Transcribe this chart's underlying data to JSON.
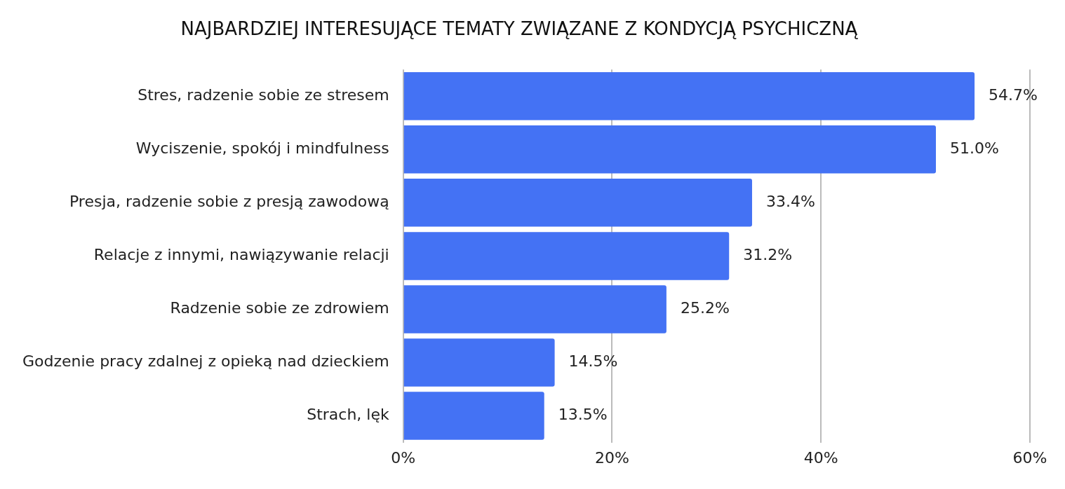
{
  "chart_data": {
    "type": "bar",
    "orientation": "horizontal",
    "title": "NAJBARDZIEJ INTERESUJĄCE TEMATY ZWIĄZANE Z KONDYCJĄ PSYCHICZNĄ",
    "categories": [
      "Stres, radzenie sobie ze stresem",
      "Wyciszenie, spokój i mindfulness",
      "Presja, radzenie sobie z presją zawodową",
      "Relacje z innymi, nawiązywanie relacji",
      "Radzenie sobie ze zdrowiem",
      "Godzenie pracy zdalnej z opieką nad dzieckiem",
      "Strach, lęk"
    ],
    "values": [
      54.7,
      51.0,
      33.4,
      31.2,
      25.2,
      14.5,
      13.5
    ],
    "value_labels": [
      "54.7%",
      "51.0%",
      "33.4%",
      "31.2%",
      "25.2%",
      "14.5%",
      "13.5%"
    ],
    "color": "#4472f4",
    "xlim": [
      0,
      60
    ],
    "xticks": [
      {
        "value": 0,
        "label": "0%"
      },
      {
        "value": 20,
        "label": "20%"
      },
      {
        "value": 40,
        "label": "40%"
      },
      {
        "value": 60,
        "label": "60%"
      }
    ],
    "grid": "x",
    "legend": false
  }
}
